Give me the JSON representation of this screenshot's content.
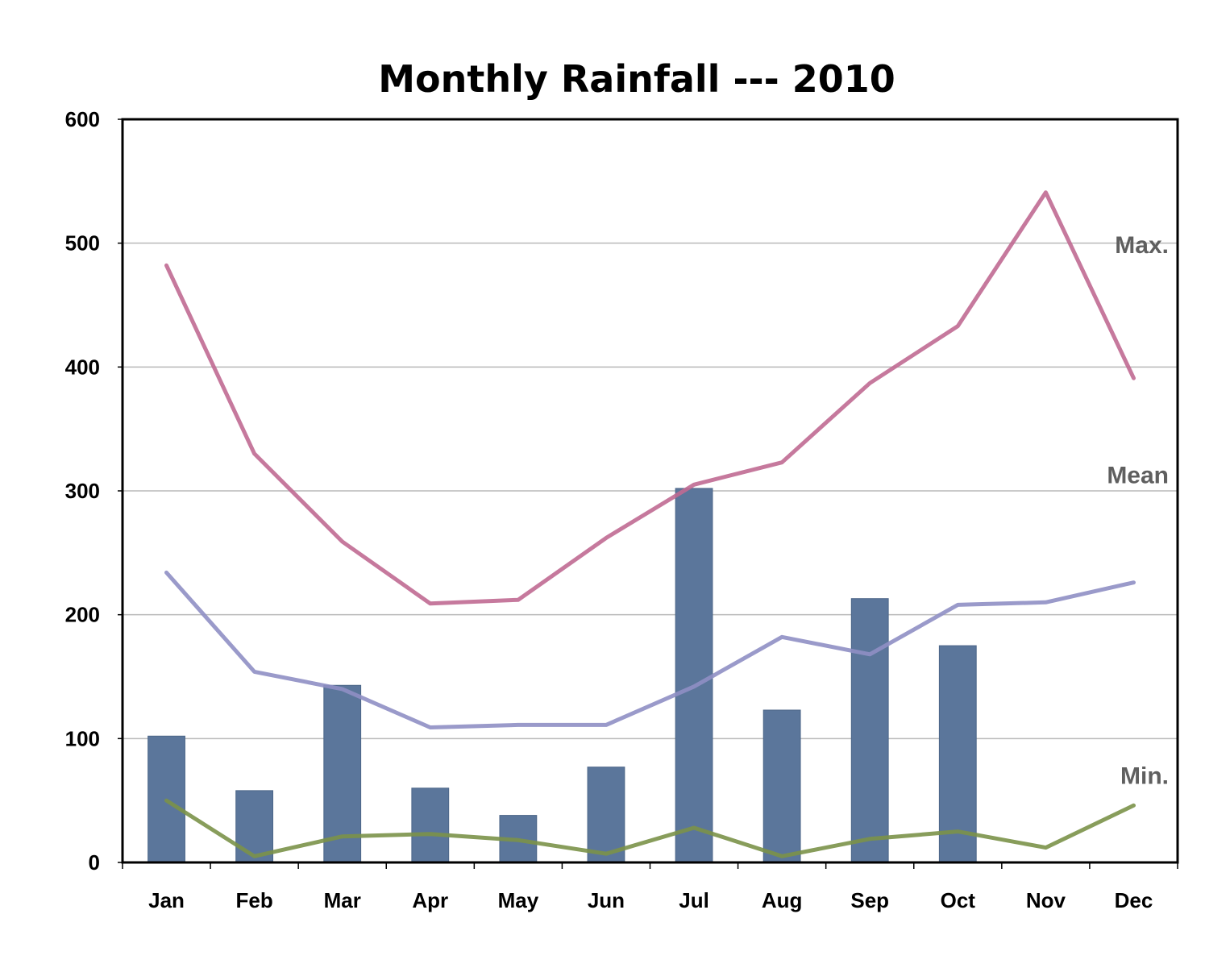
{
  "chart_data": {
    "type": "bar",
    "title": "Monthly Rainfall --- 2010",
    "xlabel": "",
    "ylabel": "",
    "categories": [
      "Jan",
      "Feb",
      "Mar",
      "Apr",
      "May",
      "Jun",
      "Jul",
      "Aug",
      "Sep",
      "Oct",
      "Nov",
      "Dec"
    ],
    "ylim": [
      0,
      600
    ],
    "yticks": [
      "0",
      "100",
      "200",
      "300",
      "400",
      "500",
      "600"
    ],
    "grid": true,
    "bars": {
      "values": [
        102,
        58,
        143,
        60,
        38,
        77,
        302,
        123,
        213,
        175,
        null,
        null
      ],
      "color": "#5b769b"
    },
    "lines": [
      {
        "name": "Max.",
        "color": "#c06a92",
        "values": [
          482,
          330,
          259,
          209,
          212,
          262,
          305,
          323,
          387,
          433,
          541,
          391
        ]
      },
      {
        "name": "Mean",
        "color": "#8f8fc4",
        "values": [
          234,
          154,
          140,
          109,
          111,
          111,
          142,
          182,
          168,
          208,
          210,
          226
        ]
      },
      {
        "name": "Min.",
        "color": "#7b9249",
        "values": [
          50,
          5,
          21,
          23,
          18,
          7,
          28,
          5,
          19,
          25,
          12,
          46
        ]
      }
    ]
  }
}
